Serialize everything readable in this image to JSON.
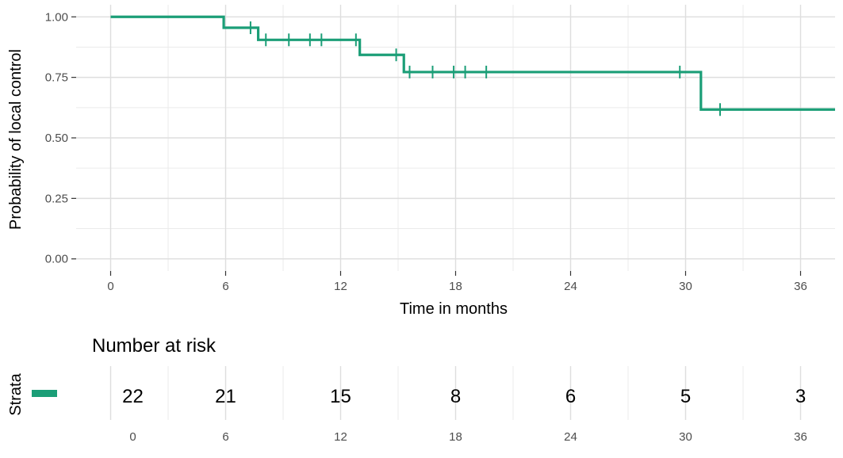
{
  "chart_data": [
    {
      "type": "line",
      "subtype": "kaplan-meier-step",
      "ylabel": "Probability of local control",
      "xlabel": "Time in months",
      "xlim": [
        -1.8,
        37.8
      ],
      "ylim": [
        -0.05,
        1.05
      ],
      "x_ticks": [
        0,
        6,
        12,
        18,
        24,
        30,
        36
      ],
      "y_ticks": [
        0.0,
        0.25,
        0.5,
        0.75,
        1.0
      ],
      "y_tick_labels": [
        "0.00",
        "0.25",
        "0.50",
        "0.75",
        "1.00"
      ],
      "grid": true,
      "legend": "none",
      "color": "#1b9e77",
      "series": [
        {
          "steps": [
            {
              "x": 0,
              "y": 1.0
            },
            {
              "x": 5.9,
              "y": 0.955
            },
            {
              "x": 7.7,
              "y": 0.905
            },
            {
              "x": 13.0,
              "y": 0.843
            },
            {
              "x": 15.3,
              "y": 0.772
            },
            {
              "x": 30.8,
              "y": 0.617
            }
          ],
          "x_end": 37.8,
          "censored": [
            {
              "x": 7.3,
              "y": 0.955
            },
            {
              "x": 8.1,
              "y": 0.905
            },
            {
              "x": 9.3,
              "y": 0.905
            },
            {
              "x": 10.4,
              "y": 0.905
            },
            {
              "x": 11.0,
              "y": 0.905
            },
            {
              "x": 12.8,
              "y": 0.905
            },
            {
              "x": 14.9,
              "y": 0.843
            },
            {
              "x": 15.6,
              "y": 0.772
            },
            {
              "x": 16.8,
              "y": 0.772
            },
            {
              "x": 17.9,
              "y": 0.772
            },
            {
              "x": 18.5,
              "y": 0.772
            },
            {
              "x": 19.6,
              "y": 0.772
            },
            {
              "x": 29.7,
              "y": 0.772
            },
            {
              "x": 31.8,
              "y": 0.617
            }
          ]
        }
      ]
    },
    {
      "type": "table",
      "title": "Number at risk",
      "row_label": "Strata",
      "x_ticks": [
        0,
        6,
        12,
        18,
        24,
        30,
        36
      ],
      "values": [
        22,
        21,
        15,
        8,
        6,
        5,
        3
      ],
      "color": "#1b9e77"
    }
  ]
}
